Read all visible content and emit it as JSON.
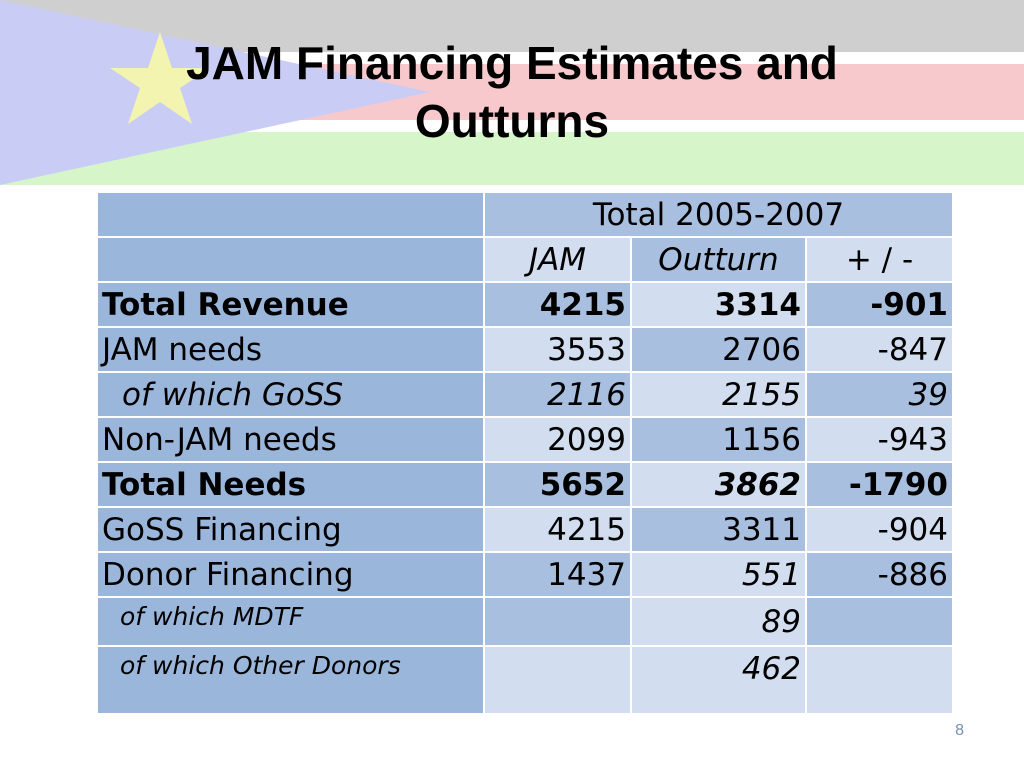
{
  "slide": {
    "title_line1": "JAM Financing Estimates and",
    "title_line2": "Outturns",
    "page_number": "8"
  },
  "table": {
    "period_header": "Total 2005-2007",
    "columns": [
      "JAM",
      "Outturn",
      "+ / -"
    ],
    "rows": [
      {
        "label": "Total Revenue",
        "jam": "4215",
        "outturn": "3314",
        "diff": "-901"
      },
      {
        "label": "JAM needs",
        "jam": "3553",
        "outturn": "2706",
        "diff": "-847"
      },
      {
        "label": "of which GoSS",
        "jam": "2116",
        "outturn": "2155",
        "diff": "39"
      },
      {
        "label": "Non-JAM needs",
        "jam": "2099",
        "outturn": "1156",
        "diff": "-943"
      },
      {
        "label": "Total Needs",
        "jam": "5652",
        "outturn": "3862",
        "diff": "-1790"
      },
      {
        "label": "GoSS Financing",
        "jam": "4215",
        "outturn": "3311",
        "diff": "-904"
      },
      {
        "label": "Donor Financing",
        "jam": "1437",
        "outturn": "551",
        "diff": "-886"
      },
      {
        "label": "of which MDTF",
        "jam": "",
        "outturn": "89",
        "diff": ""
      },
      {
        "label": "of which Other Donors",
        "jam": "",
        "outturn": "462",
        "diff": ""
      }
    ]
  },
  "colors": {
    "label_cell": "#9bb6db",
    "light_cell": "#d2deef",
    "mid_cell": "#a9bfe0",
    "banner_red": "#f8c9cc",
    "banner_green": "#d6f5c9",
    "banner_blue": "#c9cdf5",
    "star": "#f2f4b0"
  }
}
